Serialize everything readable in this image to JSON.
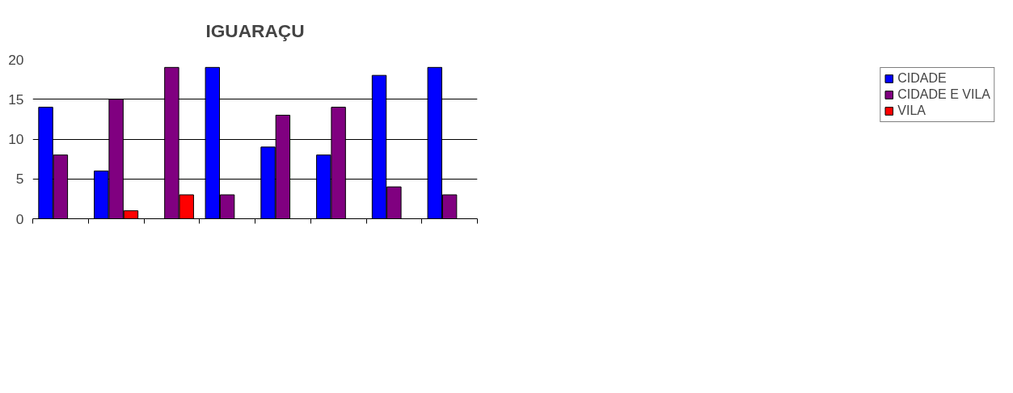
{
  "chart_data": {
    "type": "bar",
    "title": "IGUARAÇU",
    "categories": [
      null,
      null,
      null,
      null,
      null,
      null,
      null,
      null
    ],
    "series": [
      {
        "name": "CIDADE",
        "color": "#0000ff",
        "values": [
          14,
          6,
          null,
          19,
          9,
          8,
          18,
          19
        ]
      },
      {
        "name": "CIDADE E VILA",
        "color": "#800080",
        "values": [
          8,
          15,
          19,
          3,
          13,
          14,
          4,
          3
        ]
      },
      {
        "name": "VILA",
        "color": "#ff0000",
        "values": [
          null,
          1,
          3,
          null,
          null,
          null,
          null,
          null
        ]
      }
    ],
    "ylim": [
      0,
      20
    ],
    "yticks": [
      0,
      5,
      10,
      15,
      20
    ],
    "grid": "y",
    "legend": "right"
  }
}
